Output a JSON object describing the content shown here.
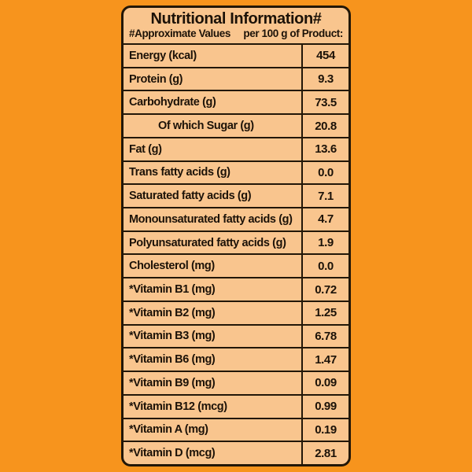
{
  "table": {
    "title": "Nutritional Information#",
    "subtitle_left": "#Approximate Values",
    "subtitle_right": "per 100 g of Product:",
    "rows": [
      {
        "label": "Energy (kcal)",
        "value": "454",
        "indent": false
      },
      {
        "label": "Protein (g)",
        "value": "9.3",
        "indent": false
      },
      {
        "label": "Carbohydrate (g)",
        "value": "73.5",
        "indent": false
      },
      {
        "label": "Of which Sugar (g)",
        "value": "20.8",
        "indent": true
      },
      {
        "label": "Fat (g)",
        "value": "13.6",
        "indent": false
      },
      {
        "label": "Trans fatty acids (g)",
        "value": "0.0",
        "indent": false
      },
      {
        "label": "Saturated fatty acids (g)",
        "value": "7.1",
        "indent": false
      },
      {
        "label": "Monounsaturated fatty acids (g)",
        "value": "4.7",
        "indent": false
      },
      {
        "label": "Polyunsaturated fatty acids (g)",
        "value": "1.9",
        "indent": false
      },
      {
        "label": "Cholesterol (mg)",
        "value": "0.0",
        "indent": false
      },
      {
        "label": "*Vitamin B1 (mg)",
        "value": "0.72",
        "indent": false
      },
      {
        "label": "*Vitamin B2 (mg)",
        "value": "1.25",
        "indent": false
      },
      {
        "label": "*Vitamin B3 (mg)",
        "value": "6.78",
        "indent": false
      },
      {
        "label": "*Vitamin B6 (mg)",
        "value": "1.47",
        "indent": false
      },
      {
        "label": "*Vitamin B9 (mg)",
        "value": "0.09",
        "indent": false
      },
      {
        "label": "*Vitamin B12 (mcg)",
        "value": "0.99",
        "indent": false
      },
      {
        "label": "*Vitamin A (mg)",
        "value": "0.19",
        "indent": false
      },
      {
        "label": "*Vitamin D (mcg)",
        "value": "2.81",
        "indent": false
      }
    ]
  },
  "colors": {
    "background": "#F7941D",
    "panel": "#F9C58E",
    "border": "#221708",
    "text": "#1C1208"
  }
}
